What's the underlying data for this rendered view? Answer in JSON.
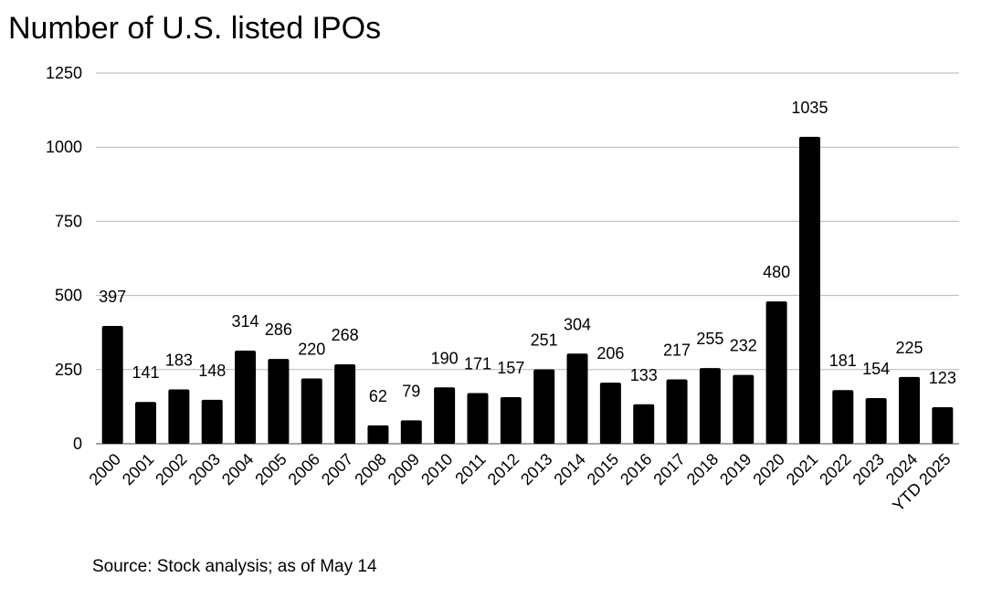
{
  "chart_data": {
    "type": "bar",
    "title": "Number of U.S. listed IPOs",
    "source": "Source: Stock analysis; as of May 14",
    "xlabel": "",
    "ylabel": "",
    "ylim": [
      0,
      1250
    ],
    "yticks": [
      "0",
      "250",
      "500",
      "750",
      "1000",
      "1250"
    ],
    "grid": true,
    "bar_color": "#000000",
    "categories": [
      "2000",
      "2001",
      "2002",
      "2003",
      "2004",
      "2005",
      "2006",
      "2007",
      "2008",
      "2009",
      "2010",
      "2011",
      "2012",
      "2013",
      "2014",
      "2015",
      "2016",
      "2017",
      "2018",
      "2019",
      "2020",
      "2021",
      "2022",
      "2023",
      "2024",
      "YTD 2025"
    ],
    "values": [
      397,
      141,
      183,
      148,
      314,
      286,
      220,
      268,
      62,
      79,
      190,
      171,
      157,
      251,
      304,
      206,
      133,
      217,
      255,
      232,
      480,
      1035,
      181,
      154,
      225,
      123
    ]
  }
}
